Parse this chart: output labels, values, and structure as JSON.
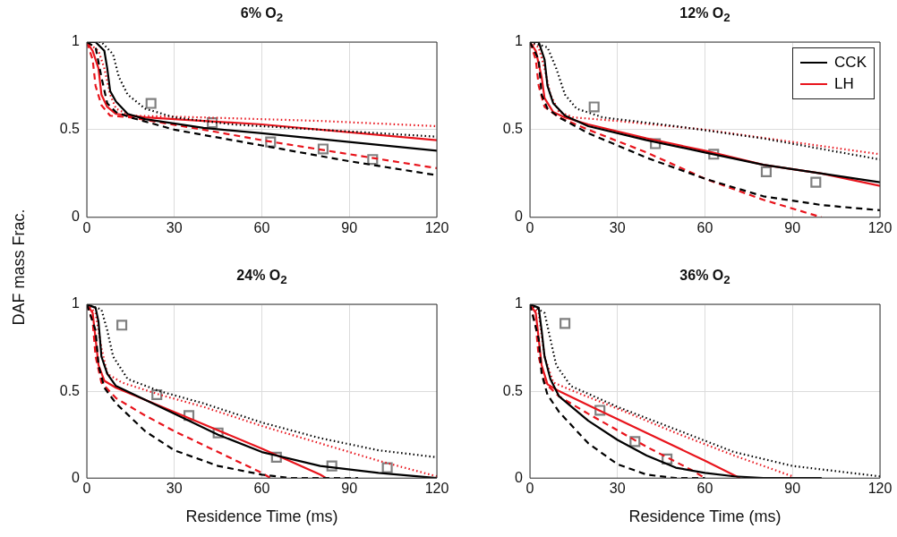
{
  "chart_data": [
    {
      "type": "line",
      "title": "6% O$_{2}$",
      "ylabel": "DAF mass Frac.",
      "xlim": [
        0,
        120
      ],
      "ylim": [
        0,
        1
      ],
      "xticks": [
        0,
        30,
        60,
        90,
        120
      ],
      "yticks": [
        0,
        0.5,
        1
      ],
      "grid": true,
      "series": [
        {
          "color": "#000000",
          "line_style": "solid",
          "x": [
            0,
            3,
            6,
            7,
            8,
            10,
            14,
            20,
            40,
            60,
            90,
            120
          ],
          "values": [
            1,
            1,
            0.95,
            0.85,
            0.72,
            0.66,
            0.59,
            0.56,
            0.51,
            0.48,
            0.43,
            0.38
          ]
        },
        {
          "color": "#000000",
          "line_style": "dashed",
          "x": [
            0,
            3,
            5,
            7,
            10,
            15,
            30,
            60,
            90,
            120
          ],
          "values": [
            1,
            0.97,
            0.8,
            0.65,
            0.6,
            0.57,
            0.5,
            0.41,
            0.32,
            0.24
          ]
        },
        {
          "color": "#000000",
          "line_style": "dotted",
          "x": [
            0,
            5,
            9,
            11,
            14,
            20,
            30,
            50,
            90,
            120
          ],
          "values": [
            1,
            1,
            0.93,
            0.8,
            0.7,
            0.62,
            0.57,
            0.53,
            0.49,
            0.46
          ]
        },
        {
          "color": "#e8141c",
          "line_style": "solid",
          "x": [
            0,
            2,
            4,
            5,
            7,
            10,
            20,
            60,
            120
          ],
          "values": [
            1,
            0.95,
            0.85,
            0.7,
            0.63,
            0.59,
            0.57,
            0.53,
            0.44
          ]
        },
        {
          "color": "#e8141c",
          "line_style": "dashed",
          "x": [
            0,
            2,
            3,
            5,
            8,
            15,
            40,
            60,
            90,
            120
          ],
          "values": [
            1,
            0.9,
            0.75,
            0.64,
            0.58,
            0.57,
            0.5,
            0.44,
            0.36,
            0.28
          ]
        },
        {
          "color": "#e8141c",
          "line_style": "dotted",
          "x": [
            0,
            4,
            6,
            8,
            10,
            15,
            40,
            80,
            120
          ],
          "values": [
            1,
            0.95,
            0.85,
            0.7,
            0.62,
            0.58,
            0.57,
            0.55,
            0.52
          ]
        },
        {
          "type": "scatter",
          "marker": "square",
          "color": "#808080",
          "x": [
            22,
            43,
            63,
            81,
            98
          ],
          "values": [
            0.65,
            0.54,
            0.43,
            0.39,
            0.33
          ]
        }
      ]
    },
    {
      "type": "line",
      "title": "12% O$_{2}$",
      "xlim": [
        0,
        120
      ],
      "ylim": [
        0,
        1
      ],
      "xticks": [
        0,
        30,
        60,
        90,
        120
      ],
      "yticks": [
        0,
        0.5,
        1
      ],
      "grid": true,
      "legend": "top right",
      "series": [
        {
          "name": "CCK",
          "color": "#000000",
          "line_style": "solid",
          "x": [
            0,
            3,
            5,
            6,
            8,
            12,
            20,
            40,
            60,
            80,
            100,
            120
          ],
          "values": [
            1,
            1,
            0.9,
            0.75,
            0.65,
            0.58,
            0.52,
            0.44,
            0.37,
            0.3,
            0.25,
            0.2
          ]
        },
        {
          "color": "#000000",
          "line_style": "dashed",
          "x": [
            0,
            3,
            4,
            6,
            10,
            20,
            40,
            60,
            80,
            100,
            120
          ],
          "values": [
            1,
            0.9,
            0.7,
            0.62,
            0.57,
            0.48,
            0.34,
            0.22,
            0.12,
            0.07,
            0.04
          ]
        },
        {
          "color": "#000000",
          "line_style": "dotted",
          "x": [
            0,
            6,
            9,
            12,
            16,
            25,
            50,
            80,
            120
          ],
          "values": [
            1,
            0.97,
            0.85,
            0.7,
            0.62,
            0.57,
            0.52,
            0.45,
            0.33
          ]
        },
        {
          "name": "LH",
          "color": "#e8141c",
          "line_style": "solid",
          "x": [
            0,
            2,
            4,
            5,
            8,
            12,
            20,
            40,
            60,
            80,
            100,
            120
          ],
          "values": [
            1,
            0.95,
            0.8,
            0.68,
            0.6,
            0.57,
            0.53,
            0.45,
            0.38,
            0.3,
            0.25,
            0.18
          ]
        },
        {
          "color": "#e8141c",
          "line_style": "dashed",
          "x": [
            0,
            2,
            3,
            5,
            10,
            20,
            40,
            60,
            80,
            100
          ],
          "values": [
            1,
            0.9,
            0.75,
            0.63,
            0.57,
            0.5,
            0.37,
            0.22,
            0.1,
            0
          ]
        },
        {
          "color": "#e8141c",
          "line_style": "dotted",
          "x": [
            0,
            3,
            5,
            7,
            10,
            15,
            30,
            60,
            90,
            120
          ],
          "values": [
            1,
            0.97,
            0.85,
            0.7,
            0.6,
            0.57,
            0.55,
            0.5,
            0.43,
            0.36
          ]
        },
        {
          "type": "scatter",
          "marker": "square",
          "color": "#808080",
          "x": [
            22,
            43,
            63,
            81,
            98
          ],
          "values": [
            0.63,
            0.42,
            0.36,
            0.26,
            0.2
          ]
        }
      ]
    },
    {
      "type": "line",
      "title": "24% O$_{2}$",
      "xlabel": "Residence Time (ms)",
      "xlim": [
        0,
        120
      ],
      "ylim": [
        0,
        1
      ],
      "xticks": [
        0,
        30,
        60,
        90,
        120
      ],
      "yticks": [
        0,
        0.5,
        1
      ],
      "grid": true,
      "series": [
        {
          "color": "#000000",
          "line_style": "solid",
          "x": [
            0,
            3,
            4,
            5,
            7,
            10,
            20,
            30,
            45,
            60,
            80,
            100,
            120
          ],
          "values": [
            1,
            0.98,
            0.9,
            0.7,
            0.6,
            0.53,
            0.45,
            0.37,
            0.25,
            0.15,
            0.07,
            0.03,
            0
          ]
        },
        {
          "color": "#000000",
          "line_style": "dashed",
          "x": [
            0,
            3,
            4,
            6,
            10,
            20,
            30,
            45,
            60,
            70,
            93
          ],
          "values": [
            1,
            0.85,
            0.65,
            0.52,
            0.43,
            0.27,
            0.16,
            0.07,
            0.02,
            0,
            0
          ]
        },
        {
          "color": "#000000",
          "line_style": "dotted",
          "x": [
            0,
            5,
            7,
            9,
            14,
            25,
            40,
            60,
            80,
            100,
            120
          ],
          "values": [
            1,
            0.97,
            0.85,
            0.7,
            0.57,
            0.5,
            0.43,
            0.32,
            0.23,
            0.16,
            0.12
          ]
        },
        {
          "color": "#e8141c",
          "line_style": "solid",
          "x": [
            0,
            2,
            3,
            4,
            6,
            10,
            20,
            40,
            60,
            80,
            82
          ],
          "values": [
            1,
            0.95,
            0.8,
            0.65,
            0.56,
            0.52,
            0.45,
            0.31,
            0.17,
            0.02,
            0
          ]
        },
        {
          "color": "#e8141c",
          "line_style": "dashed",
          "x": [
            0,
            2,
            3,
            5,
            10,
            20,
            30,
            45,
            60,
            63
          ],
          "values": [
            1,
            0.9,
            0.7,
            0.55,
            0.46,
            0.36,
            0.27,
            0.15,
            0.03,
            0
          ]
        },
        {
          "color": "#e8141c",
          "line_style": "dotted",
          "x": [
            0,
            3,
            5,
            7,
            12,
            25,
            40,
            60,
            80,
            100,
            120
          ],
          "values": [
            1,
            0.95,
            0.75,
            0.6,
            0.55,
            0.48,
            0.41,
            0.3,
            0.2,
            0.1,
            0.01
          ]
        },
        {
          "type": "scatter",
          "marker": "square",
          "color": "#808080",
          "x": [
            12,
            24,
            35,
            45,
            65,
            84,
            103
          ],
          "values": [
            0.88,
            0.48,
            0.36,
            0.26,
            0.12,
            0.07,
            0.06
          ]
        }
      ]
    },
    {
      "type": "line",
      "title": "36% O$_{2}$",
      "xlabel": "Residence Time (ms)",
      "xlim": [
        0,
        120
      ],
      "ylim": [
        0,
        1
      ],
      "xticks": [
        0,
        30,
        60,
        90,
        120
      ],
      "yticks": [
        0,
        0.5,
        1
      ],
      "grid": true,
      "series": [
        {
          "color": "#000000",
          "line_style": "solid",
          "x": [
            0,
            3,
            4,
            5,
            7,
            10,
            20,
            30,
            40,
            50,
            60,
            70,
            80,
            100
          ],
          "values": [
            1,
            0.98,
            0.85,
            0.7,
            0.57,
            0.47,
            0.33,
            0.22,
            0.13,
            0.06,
            0.03,
            0.01,
            0,
            0
          ]
        },
        {
          "color": "#000000",
          "line_style": "dashed",
          "x": [
            0,
            3,
            4,
            6,
            10,
            20,
            30,
            40,
            50,
            60
          ],
          "values": [
            1,
            0.8,
            0.6,
            0.48,
            0.38,
            0.2,
            0.08,
            0.02,
            0,
            0
          ]
        },
        {
          "color": "#000000",
          "line_style": "dotted",
          "x": [
            0,
            5,
            7,
            9,
            14,
            30,
            50,
            70,
            90,
            120
          ],
          "values": [
            1,
            0.95,
            0.8,
            0.65,
            0.53,
            0.41,
            0.28,
            0.15,
            0.07,
            0.01
          ]
        },
        {
          "color": "#e8141c",
          "line_style": "solid",
          "x": [
            0,
            2,
            3,
            4,
            6,
            10,
            20,
            40,
            60,
            72
          ],
          "values": [
            1,
            0.95,
            0.8,
            0.65,
            0.54,
            0.5,
            0.42,
            0.26,
            0.1,
            0
          ]
        },
        {
          "color": "#e8141c",
          "line_style": "dashed",
          "x": [
            0,
            2,
            3,
            5,
            10,
            20,
            40,
            55,
            60
          ],
          "values": [
            1,
            0.88,
            0.7,
            0.55,
            0.47,
            0.37,
            0.18,
            0.05,
            0
          ]
        },
        {
          "color": "#e8141c",
          "line_style": "dotted",
          "x": [
            0,
            3,
            5,
            8,
            15,
            30,
            50,
            70,
            90
          ],
          "values": [
            1,
            0.95,
            0.7,
            0.55,
            0.5,
            0.4,
            0.26,
            0.13,
            0.01
          ]
        },
        {
          "type": "scatter",
          "marker": "square",
          "color": "#808080",
          "x": [
            12,
            24,
            36,
            47
          ],
          "values": [
            0.89,
            0.39,
            0.21,
            0.11
          ]
        }
      ]
    }
  ]
}
